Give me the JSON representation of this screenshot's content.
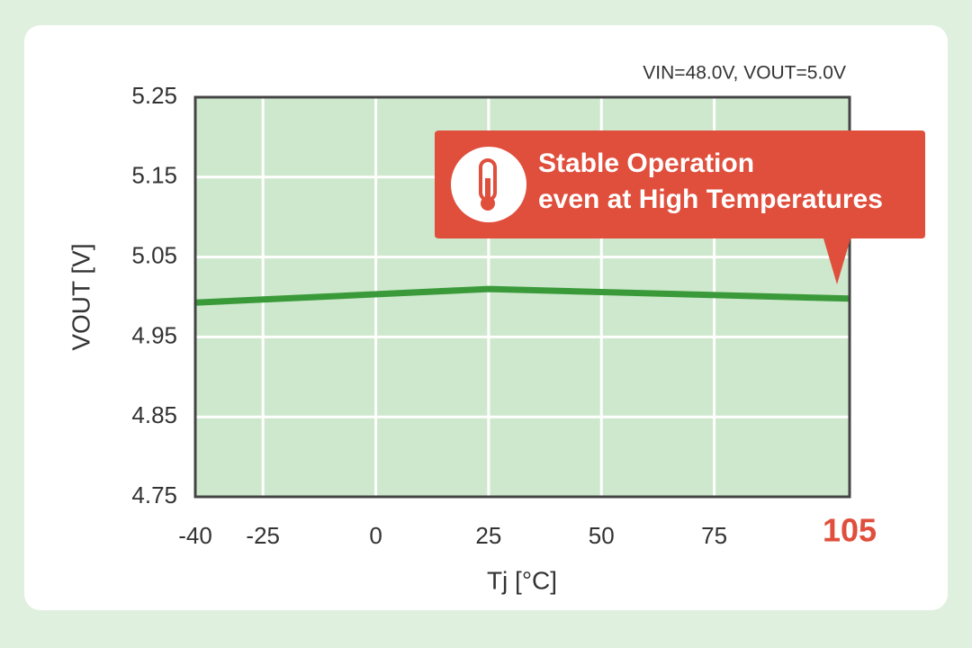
{
  "chart_data": {
    "type": "line",
    "subtitle": "VIN=48.0V, VOUT=5.0V",
    "x_label": "Tj [°C]",
    "y_label": "VOUT [V]",
    "x": [
      -40,
      25,
      105
    ],
    "series": [
      {
        "color": "#3a9a3a",
        "values": [
          4.993,
          5.01,
          4.998
        ]
      }
    ],
    "xlim": [
      -40,
      105
    ],
    "ylim": [
      4.75,
      5.25
    ],
    "xticks": [
      -40,
      -25,
      0,
      25,
      50,
      75,
      105
    ],
    "yticks": [
      4.75,
      4.85,
      4.95,
      5.05,
      5.15,
      5.25
    ],
    "grid": true,
    "annotation": [
      "Stable Operation",
      "even at High Temperatures"
    ],
    "highlight_color": "#e04e3c"
  }
}
